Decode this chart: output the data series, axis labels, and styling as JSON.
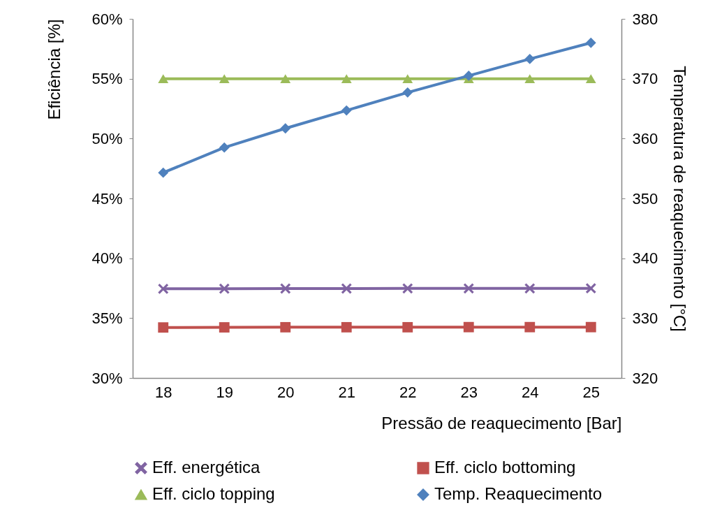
{
  "chart_data": {
    "type": "line",
    "xlabel": "Pressão de reaquecimento [Bar]",
    "ylabel": "Eficiência [%]",
    "y2label": "Temperatura de reaquecimento [°C]",
    "categories": [
      "18",
      "19",
      "20",
      "21",
      "22",
      "23",
      "24",
      "25"
    ],
    "series": [
      {
        "name": "Eff. energética",
        "color": "#8064a2",
        "marker": "cross",
        "values": [
          37.45,
          37.46,
          37.47,
          37.47,
          37.48,
          37.48,
          37.48,
          37.49
        ]
      },
      {
        "name": "Eff. ciclo bottoming",
        "color": "#c0504d",
        "marker": "square",
        "values": [
          34.22,
          34.23,
          34.24,
          34.24,
          34.24,
          34.25,
          34.25,
          34.25
        ]
      },
      {
        "name": "Eff. ciclo topping",
        "color": "#9bbb59",
        "marker": "triangle",
        "values": [
          55,
          55,
          55,
          55,
          55,
          55,
          55,
          55
        ]
      },
      {
        "name": "Temp. Reaquecimento",
        "color": "#4f81bd",
        "marker": "diamond",
        "axis": "y2",
        "values": [
          354.3,
          358.5,
          361.7,
          364.7,
          367.7,
          370.5,
          373.3,
          376.0
        ]
      }
    ],
    "ylim": [
      30,
      60
    ],
    "yticks": [
      {
        "value": 30,
        "label": "30%"
      },
      {
        "value": 35,
        "label": "35%"
      },
      {
        "value": 40,
        "label": "40%"
      },
      {
        "value": 45,
        "label": "45%"
      },
      {
        "value": 50,
        "label": "50%"
      },
      {
        "value": 55,
        "label": "55%"
      },
      {
        "value": 60,
        "label": "60%"
      }
    ],
    "y2lim": [
      320,
      380
    ],
    "y2ticks": [
      320,
      330,
      340,
      350,
      360,
      370,
      380
    ],
    "legend": "bottom"
  }
}
